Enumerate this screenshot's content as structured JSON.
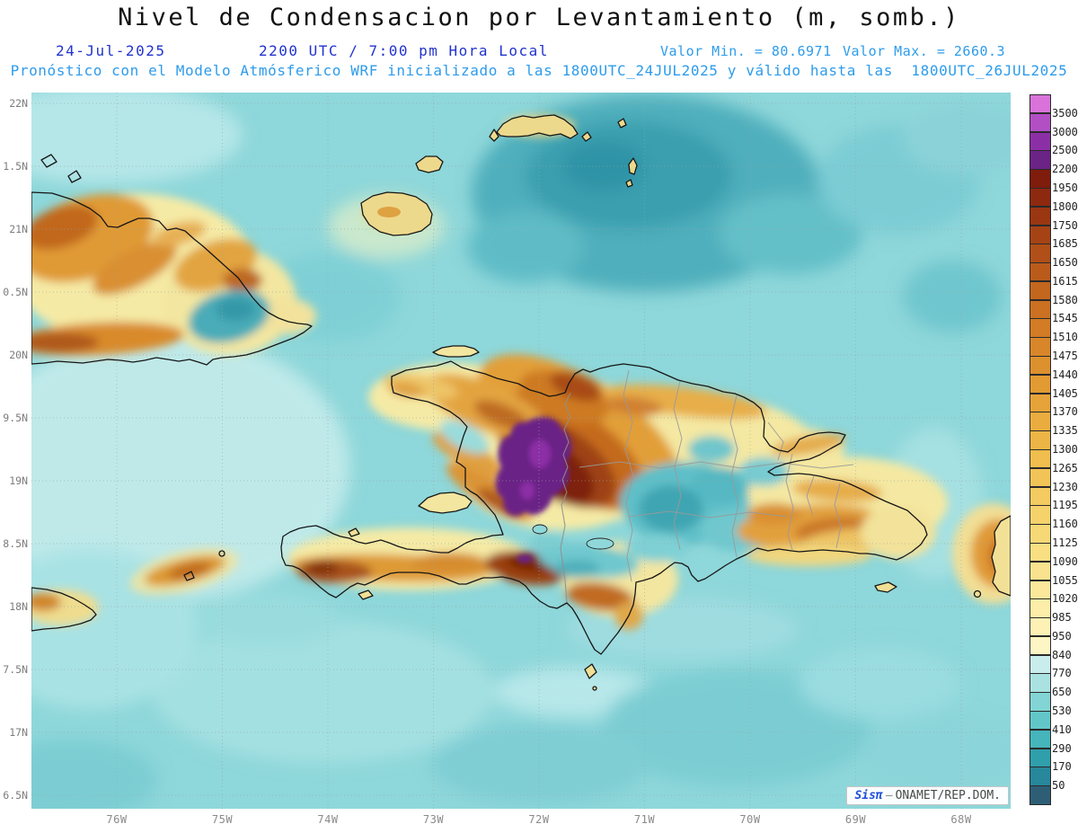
{
  "header": {
    "date": "24-Jul-2025",
    "time": "2200 UTC / 7:00 pm Hora Local",
    "valor_min": "Valor Min. = 80.6971",
    "valor_max": "Valor Max. = 2660.3",
    "forecast_line": "Pronóstico con el Modelo Atmósferico WRF inicializado a las 1800UTC_24JUL2025 y válido hasta las  1800UTC_26JUL2025"
  },
  "watermark": {
    "brand": "Sisπ",
    "sep": "–",
    "org": "ONAMET/REP.DOM."
  },
  "chart_data": {
    "type": "heatmap",
    "title": "Nivel de Condensacion por Levantamiento (m, somb.)",
    "units": "m",
    "value_min": 80.6971,
    "value_max": 2660.3,
    "x_tick_labels": [
      "76W",
      "75W",
      "74W",
      "73W",
      "72W",
      "71W",
      "70W",
      "69W",
      "68W"
    ],
    "y_tick_labels": [
      "22N",
      "1.5N",
      "21N",
      "0.5N",
      "20N",
      "9.5N",
      "19N",
      "8.5N",
      "18N",
      "7.5N",
      "17N",
      "6.5N"
    ],
    "colorbar_levels": [
      3500,
      3000,
      2500,
      2200,
      1950,
      1800,
      1750,
      1685,
      1650,
      1615,
      1580,
      1545,
      1510,
      1475,
      1440,
      1405,
      1370,
      1335,
      1300,
      1265,
      1230,
      1195,
      1160,
      1125,
      1090,
      1055,
      1020,
      985,
      950,
      840,
      770,
      650,
      530,
      410,
      290,
      170,
      50
    ],
    "colorbar_colors": [
      "#D973D9",
      "#B24FC4",
      "#8C2FA6",
      "#6B2386",
      "#7F1C0C",
      "#8D290F",
      "#9A3612",
      "#A64315",
      "#B04F18",
      "#BA5B1B",
      "#C3661E",
      "#CB7121",
      "#D27C25",
      "#D88629",
      "#DD902E",
      "#E29A33",
      "#E6A339",
      "#EAAC3F",
      "#EDB546",
      "#F0BD4E",
      "#F2C457",
      "#F4CB61",
      "#F6D26B",
      "#F7D876",
      "#F9DE82",
      "#FAE38E",
      "#FBE89B",
      "#FCEDA8",
      "#FDF1B5",
      "#FDF5C3",
      "#C9EDEC",
      "#A9E2E1",
      "#83D4D4",
      "#62C6C8",
      "#45B4BB",
      "#2F9FAC",
      "#27879B",
      "#2E5E76"
    ],
    "field_summary": [
      {
        "region": "Cordillera Central (Hispaniola) purple core",
        "lcl_m": "2200-2660 (maximum)"
      },
      {
        "region": "Mountain ridges of Haiti, eastern Cuba, eastern DR",
        "lcl_m": "1300-1950 (orange-brown)"
      },
      {
        "region": "Lowlands, coasts and small islands",
        "lcl_m": "850-1300 (yellow)"
      },
      {
        "region": "Open ocean",
        "lcl_m": "300-840 (cyan-teal)"
      },
      {
        "region": "Atlantic dark-teal area north of Hispaniola",
        "lcl_m": "170-410 (minimum area)"
      }
    ]
  }
}
